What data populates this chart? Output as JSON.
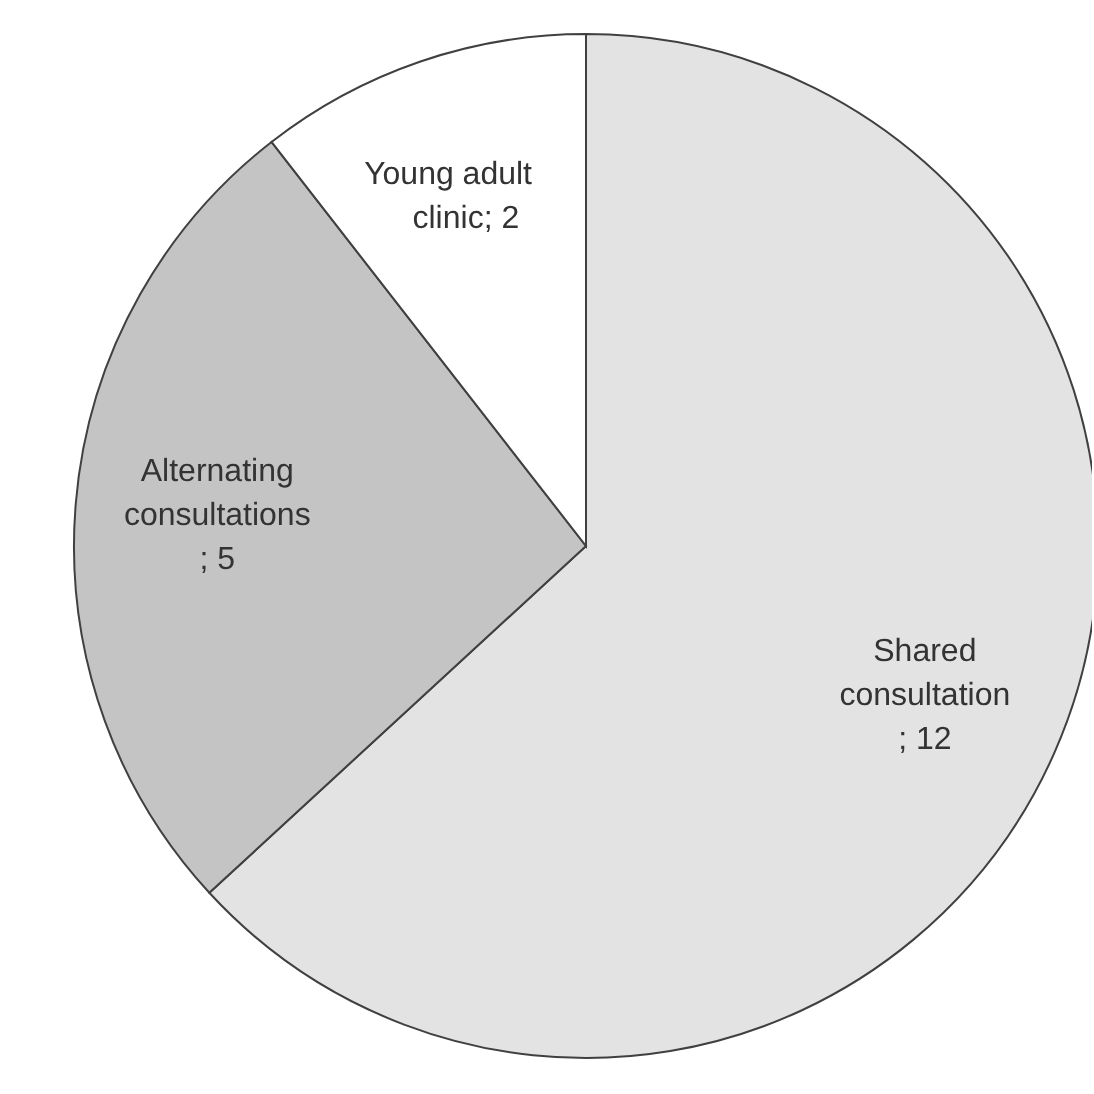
{
  "chart_data": {
    "type": "pie",
    "categories": [
      "Shared consultation",
      "Alternating consultations",
      "Young adult clinic"
    ],
    "values": [
      12,
      5,
      2
    ],
    "colors": [
      "#e3e3e3",
      "#c4c4c4",
      "#ffffff"
    ],
    "value_labels": [
      "; 12",
      "; 5",
      "; 2"
    ]
  }
}
